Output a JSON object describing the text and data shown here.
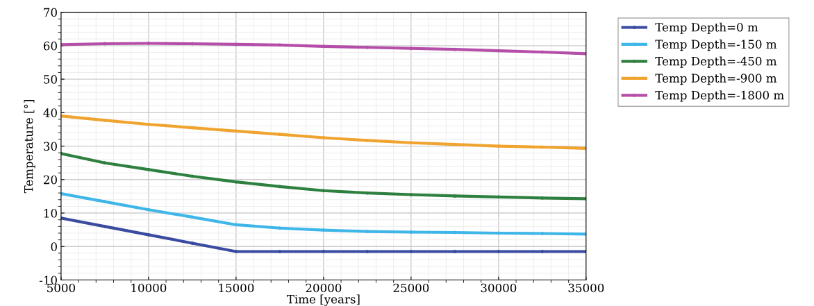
{
  "chart_data": {
    "type": "line",
    "xlabel": "Time [years]",
    "ylabel": "Temperature [°]",
    "x": [
      5000,
      7500,
      10000,
      12500,
      15000,
      17500,
      20000,
      22500,
      25000,
      27500,
      30000,
      32500,
      35000
    ],
    "series": [
      {
        "name": "Temp Depth=0 m",
        "color": "#3a4ba0",
        "values": [
          8.5,
          6.0,
          3.5,
          1.0,
          -1.5,
          -1.5,
          -1.5,
          -1.5,
          -1.5,
          -1.5,
          -1.5,
          -1.5,
          -1.5
        ]
      },
      {
        "name": "Temp Depth=-150 m",
        "color": "#3fb6e8",
        "values": [
          15.8,
          13.4,
          11.0,
          8.8,
          6.5,
          5.5,
          4.9,
          4.5,
          4.3,
          4.2,
          4.0,
          3.9,
          3.7
        ]
      },
      {
        "name": "Temp Depth=-450 m",
        "color": "#2e8040",
        "values": [
          27.8,
          25.0,
          23.0,
          21.0,
          19.3,
          17.9,
          16.7,
          16.0,
          15.5,
          15.1,
          14.8,
          14.5,
          14.3
        ]
      },
      {
        "name": "Temp Depth=-900 m",
        "color": "#f0a430",
        "values": [
          39.0,
          37.7,
          36.5,
          35.5,
          34.5,
          33.5,
          32.5,
          31.7,
          31.0,
          30.5,
          30.0,
          29.7,
          29.3
        ]
      },
      {
        "name": "Temp Depth=-1800 m",
        "color": "#b54ea8",
        "values": [
          60.3,
          60.6,
          60.7,
          60.6,
          60.4,
          60.2,
          59.8,
          59.5,
          59.2,
          58.9,
          58.5,
          58.1,
          57.6
        ]
      }
    ],
    "xlim": [
      5000,
      35000
    ],
    "xticks": [
      5000,
      10000,
      15000,
      20000,
      25000,
      30000,
      35000
    ],
    "ylim": [
      -10,
      70
    ],
    "yticks": [
      -10,
      0,
      10,
      20,
      30,
      40,
      50,
      60,
      70
    ],
    "grid": true,
    "legend": "top right",
    "marker": "circle",
    "line_style": "solid"
  }
}
